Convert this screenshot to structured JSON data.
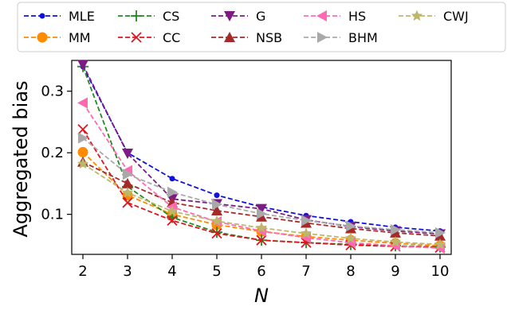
{
  "chart_data": {
    "type": "line",
    "xlabel": "N",
    "ylabel": "Aggregated bias",
    "x": [
      2,
      3,
      4,
      5,
      6,
      7,
      8,
      9,
      10
    ],
    "xlim": [
      1.75,
      10.25
    ],
    "ylim": [
      0.035,
      0.35
    ],
    "yticks": [
      0.1,
      0.2,
      0.3
    ],
    "grid": false,
    "legend_position": "top",
    "series": [
      {
        "name": "MLE",
        "color": "#1010dd",
        "marker": "circle-small",
        "values": [
          0.34,
          0.2,
          0.158,
          0.131,
          0.112,
          0.098,
          0.088,
          0.079,
          0.073
        ]
      },
      {
        "name": "MM",
        "color": "#ff8c00",
        "marker": "circle",
        "values": [
          0.201,
          0.131,
          0.1,
          0.083,
          0.072,
          0.064,
          0.058,
          0.053,
          0.049
        ]
      },
      {
        "name": "CS",
        "color": "#228b22",
        "marker": "plus",
        "values": [
          0.34,
          0.145,
          0.095,
          0.071,
          0.058,
          0.054,
          0.051,
          0.049,
          0.047
        ]
      },
      {
        "name": "CC",
        "color": "#e0141e",
        "marker": "x",
        "values": [
          0.238,
          0.119,
          0.09,
          0.069,
          0.058,
          0.054,
          0.05,
          0.048,
          0.046
        ]
      },
      {
        "name": "G",
        "color": "#7d1a84",
        "marker": "triangle-down",
        "values": [
          0.343,
          0.199,
          0.125,
          0.117,
          0.109,
          0.091,
          0.08,
          0.073,
          0.068
        ]
      },
      {
        "name": "NSB",
        "color": "#a52a2a",
        "marker": "triangle-up",
        "values": [
          0.185,
          0.15,
          0.119,
          0.106,
          0.096,
          0.086,
          0.077,
          0.07,
          0.065
        ]
      },
      {
        "name": "HS",
        "color": "#ff69b4",
        "marker": "triangle-left",
        "values": [
          0.281,
          0.171,
          0.112,
          0.088,
          0.073,
          0.062,
          0.054,
          0.049,
          0.045
        ]
      },
      {
        "name": "BHM",
        "color": "#a9a9a9",
        "marker": "triangle-right",
        "values": [
          0.224,
          0.165,
          0.136,
          0.116,
          0.101,
          0.09,
          0.081,
          0.075,
          0.07
        ]
      },
      {
        "name": "CWJ",
        "color": "#bdb76b",
        "marker": "star",
        "values": [
          0.182,
          0.135,
          0.105,
          0.089,
          0.078,
          0.069,
          0.061,
          0.055,
          0.051
        ]
      }
    ]
  }
}
